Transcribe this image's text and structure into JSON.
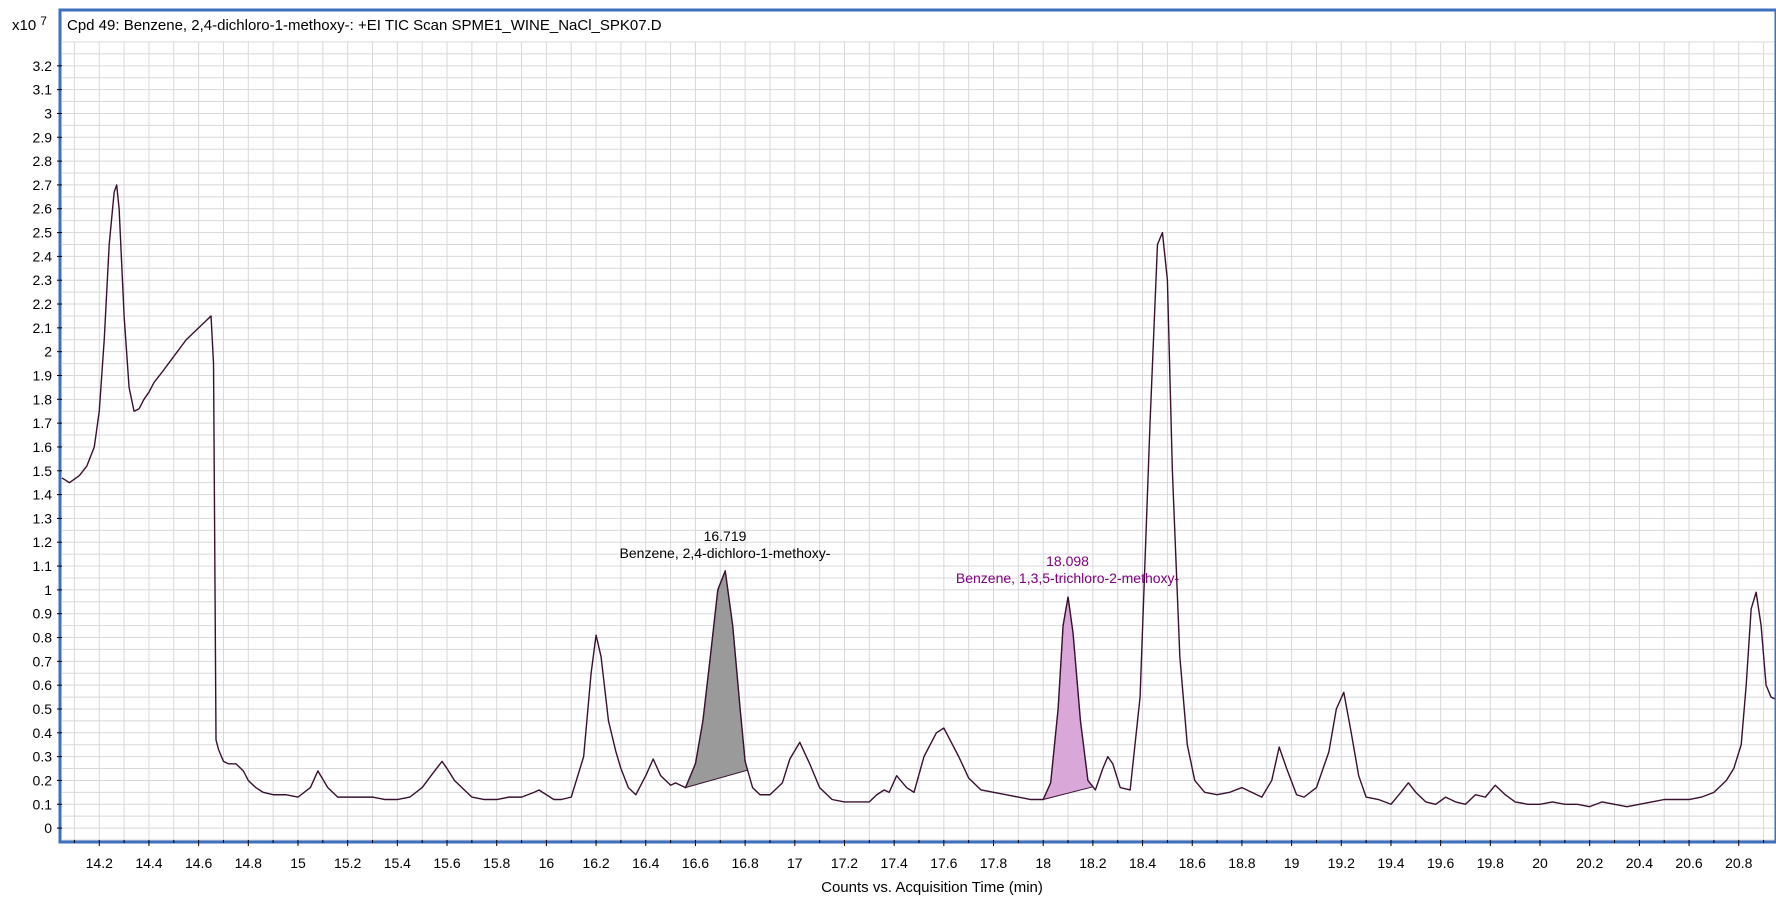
{
  "chart_data": {
    "type": "line",
    "title": "Cpd 49: Benzene, 2,4-dichloro-1-methoxy-: +EI TIC Scan SPME1_WINE_NaCl_SPK07.D",
    "xlabel": "Counts vs. Acquisition Time (min)",
    "ylabel": "",
    "y_scale_label": "x10",
    "y_scale_exponent": "7",
    "xlim": [
      14.05,
      20.95
    ],
    "ylim": [
      -0.05,
      3.3
    ],
    "x_ticks": [
      "14.2",
      "14.4",
      "14.6",
      "14.8",
      "15",
      "15.2",
      "15.4",
      "15.6",
      "15.8",
      "16",
      "16.2",
      "16.4",
      "16.6",
      "16.8",
      "17",
      "17.2",
      "17.4",
      "17.6",
      "17.8",
      "18",
      "18.2",
      "18.4",
      "18.6",
      "18.8",
      "19",
      "19.2",
      "19.4",
      "19.6",
      "19.8",
      "20",
      "20.2",
      "20.4",
      "20.6",
      "20.8"
    ],
    "y_ticks": [
      "0",
      "0.1",
      "0.2",
      "0.3",
      "0.4",
      "0.5",
      "0.6",
      "0.7",
      "0.8",
      "0.9",
      "1",
      "1.1",
      "1.2",
      "1.3",
      "1.4",
      "1.5",
      "1.6",
      "1.7",
      "1.8",
      "1.9",
      "2",
      "2.1",
      "2.2",
      "2.3",
      "2.4",
      "2.5",
      "2.6",
      "2.7",
      "2.8",
      "2.9",
      "3",
      "3.1",
      "3.2"
    ],
    "grid": true,
    "series": [
      {
        "color": "#3a1030",
        "x": [
          14.05,
          14.08,
          14.12,
          14.15,
          14.18,
          14.2,
          14.22,
          14.24,
          14.26,
          14.27,
          14.28,
          14.3,
          14.32,
          14.34,
          14.36,
          14.38,
          14.4,
          14.42,
          14.45,
          14.5,
          14.55,
          14.6,
          14.63,
          14.65,
          14.66,
          14.67,
          14.68,
          14.7,
          14.72,
          14.75,
          14.78,
          14.8,
          14.83,
          14.86,
          14.9,
          14.95,
          15.0,
          15.05,
          15.08,
          15.12,
          15.16,
          15.2,
          15.25,
          15.3,
          15.35,
          15.4,
          15.45,
          15.5,
          15.55,
          15.58,
          15.6,
          15.63,
          15.66,
          15.7,
          15.75,
          15.8,
          15.85,
          15.9,
          15.95,
          15.97,
          16.0,
          16.03,
          16.06,
          16.1,
          16.15,
          16.18,
          16.2,
          16.22,
          16.25,
          16.28,
          16.3,
          16.33,
          16.36,
          16.4,
          16.43,
          16.46,
          16.5,
          16.52,
          16.56,
          16.6,
          16.63,
          16.66,
          16.69,
          16.72,
          16.75,
          16.78,
          16.8,
          16.83,
          16.86,
          16.9,
          16.95,
          16.98,
          17.02,
          17.06,
          17.1,
          17.15,
          17.2,
          17.25,
          17.3,
          17.33,
          17.36,
          17.38,
          17.41,
          17.45,
          17.48,
          17.52,
          17.55,
          17.57,
          17.6,
          17.63,
          17.66,
          17.7,
          17.75,
          17.8,
          17.85,
          17.9,
          17.95,
          18.0,
          18.03,
          18.06,
          18.08,
          18.1,
          18.12,
          18.15,
          18.18,
          18.21,
          18.24,
          18.26,
          18.28,
          18.31,
          18.35,
          18.39,
          18.43,
          18.46,
          18.48,
          18.5,
          18.52,
          18.55,
          18.58,
          18.61,
          18.65,
          18.7,
          18.75,
          18.8,
          18.84,
          18.88,
          18.92,
          18.95,
          18.98,
          19.02,
          19.05,
          19.1,
          19.15,
          19.18,
          19.21,
          19.24,
          19.27,
          19.3,
          19.35,
          19.4,
          19.44,
          19.47,
          19.5,
          19.54,
          19.58,
          19.62,
          19.66,
          19.7,
          19.74,
          19.78,
          19.82,
          19.86,
          19.9,
          19.95,
          20.0,
          20.05,
          20.1,
          20.15,
          20.2,
          20.25,
          20.3,
          20.35,
          20.4,
          20.45,
          20.5,
          20.55,
          20.6,
          20.65,
          20.7,
          20.75,
          20.78,
          20.81,
          20.83,
          20.85,
          20.87,
          20.89,
          20.91,
          20.93,
          20.95
        ],
        "y": [
          1.47,
          1.45,
          1.48,
          1.52,
          1.6,
          1.75,
          2.05,
          2.45,
          2.67,
          2.7,
          2.6,
          2.15,
          1.85,
          1.75,
          1.76,
          1.8,
          1.83,
          1.87,
          1.91,
          1.98,
          2.05,
          2.1,
          2.13,
          2.15,
          1.95,
          0.37,
          0.33,
          0.28,
          0.27,
          0.27,
          0.24,
          0.2,
          0.17,
          0.15,
          0.14,
          0.14,
          0.13,
          0.17,
          0.24,
          0.17,
          0.13,
          0.13,
          0.13,
          0.13,
          0.12,
          0.12,
          0.13,
          0.17,
          0.24,
          0.28,
          0.25,
          0.2,
          0.17,
          0.13,
          0.12,
          0.12,
          0.13,
          0.13,
          0.15,
          0.16,
          0.14,
          0.12,
          0.12,
          0.13,
          0.3,
          0.65,
          0.81,
          0.72,
          0.45,
          0.32,
          0.25,
          0.17,
          0.14,
          0.22,
          0.29,
          0.22,
          0.18,
          0.19,
          0.17,
          0.27,
          0.45,
          0.72,
          1.0,
          1.08,
          0.85,
          0.5,
          0.28,
          0.17,
          0.14,
          0.14,
          0.19,
          0.29,
          0.36,
          0.27,
          0.17,
          0.12,
          0.11,
          0.11,
          0.11,
          0.14,
          0.16,
          0.15,
          0.22,
          0.17,
          0.15,
          0.3,
          0.36,
          0.4,
          0.42,
          0.36,
          0.3,
          0.21,
          0.16,
          0.15,
          0.14,
          0.13,
          0.12,
          0.12,
          0.19,
          0.5,
          0.85,
          0.97,
          0.82,
          0.45,
          0.2,
          0.16,
          0.25,
          0.3,
          0.27,
          0.17,
          0.16,
          0.55,
          1.7,
          2.45,
          2.5,
          2.3,
          1.5,
          0.72,
          0.35,
          0.2,
          0.15,
          0.14,
          0.15,
          0.17,
          0.15,
          0.13,
          0.2,
          0.34,
          0.25,
          0.14,
          0.13,
          0.17,
          0.32,
          0.5,
          0.57,
          0.4,
          0.22,
          0.13,
          0.12,
          0.1,
          0.15,
          0.19,
          0.15,
          0.11,
          0.1,
          0.13,
          0.11,
          0.1,
          0.14,
          0.13,
          0.18,
          0.14,
          0.11,
          0.1,
          0.1,
          0.11,
          0.1,
          0.1,
          0.09,
          0.11,
          0.1,
          0.09,
          0.1,
          0.11,
          0.12,
          0.12,
          0.12,
          0.13,
          0.15,
          0.2,
          0.25,
          0.35,
          0.6,
          0.92,
          0.99,
          0.85,
          0.6,
          0.55,
          0.54
        ]
      }
    ],
    "peaks": [
      {
        "rt": "16.719",
        "name": "Benzene, 2,4-dichloro-1-methoxy-",
        "text_color": "#000000",
        "fill": "#9a9a9a",
        "x_start": 16.56,
        "x_end": 16.81
      },
      {
        "rt": "18.098",
        "name": "Benzene, 1,3,5-trichloro-2-methoxy-",
        "text_color": "#800080",
        "fill": "#d9a8d9",
        "x_start": 18.0,
        "x_end": 18.2
      }
    ],
    "colors": {
      "frame": "#3f6fbf",
      "grid": "#d8d8dc",
      "trace": "#3a1030"
    }
  }
}
